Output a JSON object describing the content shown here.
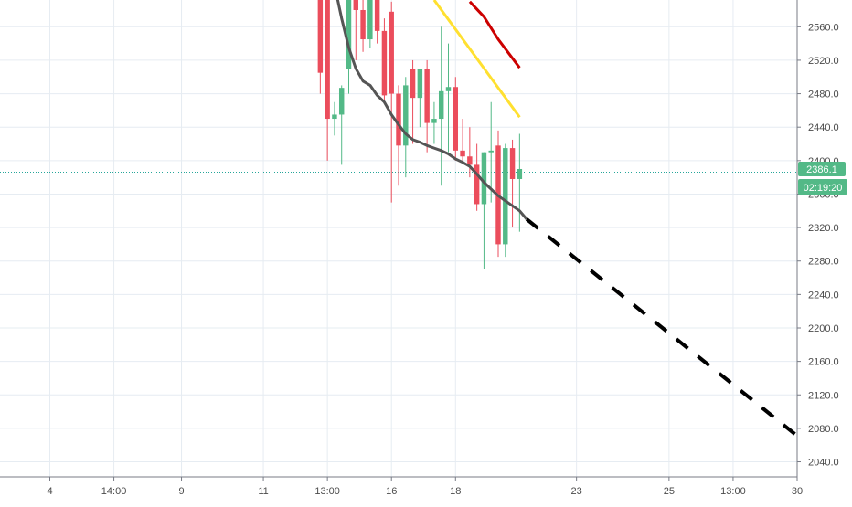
{
  "colors": {
    "grid": "#e6ecf2",
    "axis_line": "#787b86",
    "axis_text": "#4a4a4a",
    "up": "#53b987",
    "down": "#eb4d5c",
    "ma": "#555555",
    "red_line": "#cc0000",
    "yellow_line": "#ffe030",
    "dashed_line": "#000000",
    "price_tag": "#53b987",
    "price_tag_text": "#ffffff",
    "price_line": "#26a69a"
  },
  "price_label": "2386.1",
  "countdown_label": "02:19:20",
  "chart_data": {
    "type": "candlestick",
    "y_axis": {
      "range": [
        2022,
        2592
      ],
      "ticks": [
        "2560.0",
        "2520.0",
        "2480.0",
        "2440.0",
        "2400.0",
        "2360.0",
        "2320.0",
        "2280.0",
        "2240.0",
        "2200.0",
        "2160.0",
        "2120.0",
        "2080.0",
        "2040.0"
      ]
    },
    "x_axis": {
      "range": [
        0,
        112
      ],
      "ticks": [
        {
          "label": "4",
          "x": 7
        },
        {
          "label": "14:00",
          "x": 16
        },
        {
          "label": "9",
          "x": 25.5
        },
        {
          "label": "11",
          "x": 37
        },
        {
          "label": "13:00",
          "x": 46
        },
        {
          "label": "16",
          "x": 55
        },
        {
          "label": "18",
          "x": 64
        },
        {
          "label": "23",
          "x": 81
        },
        {
          "label": "25",
          "x": 94
        },
        {
          "label": "13:00",
          "x": 103
        },
        {
          "label": "30",
          "x": 112
        }
      ]
    },
    "candles": [
      {
        "x": 45,
        "o": 2640,
        "h": 2650,
        "l": 2480,
        "c": 2505
      },
      {
        "x": 46,
        "o": 2640,
        "h": 2660,
        "l": 2400,
        "c": 2450
      },
      {
        "x": 47,
        "o": 2450,
        "h": 2470,
        "l": 2430,
        "c": 2455
      },
      {
        "x": 48,
        "o": 2455,
        "h": 2490,
        "l": 2395,
        "c": 2487
      },
      {
        "x": 49,
        "o": 2510,
        "h": 2605,
        "l": 2480,
        "c": 2598
      },
      {
        "x": 50,
        "o": 2598,
        "h": 2640,
        "l": 2520,
        "c": 2580
      },
      {
        "x": 51,
        "o": 2580,
        "h": 2600,
        "l": 2530,
        "c": 2545
      },
      {
        "x": 52,
        "o": 2545,
        "h": 2620,
        "l": 2535,
        "c": 2605
      },
      {
        "x": 53,
        "o": 2605,
        "h": 2640,
        "l": 2540,
        "c": 2555
      },
      {
        "x": 54,
        "o": 2555,
        "h": 2570,
        "l": 2470,
        "c": 2478
      },
      {
        "x": 55,
        "o": 2578,
        "h": 2590,
        "l": 2350,
        "c": 2480
      },
      {
        "x": 56,
        "o": 2480,
        "h": 2490,
        "l": 2370,
        "c": 2418
      },
      {
        "x": 57,
        "o": 2418,
        "h": 2500,
        "l": 2380,
        "c": 2490
      },
      {
        "x": 58,
        "o": 2510,
        "h": 2520,
        "l": 2420,
        "c": 2475
      },
      {
        "x": 59,
        "o": 2475,
        "h": 2510,
        "l": 2440,
        "c": 2510
      },
      {
        "x": 60,
        "o": 2510,
        "h": 2520,
        "l": 2410,
        "c": 2445
      },
      {
        "x": 61,
        "o": 2445,
        "h": 2470,
        "l": 2420,
        "c": 2450
      },
      {
        "x": 62,
        "o": 2450,
        "h": 2560,
        "l": 2370,
        "c": 2483
      },
      {
        "x": 63,
        "o": 2483,
        "h": 2540,
        "l": 2410,
        "c": 2488
      },
      {
        "x": 64,
        "o": 2488,
        "h": 2500,
        "l": 2400,
        "c": 2412
      },
      {
        "x": 65,
        "o": 2412,
        "h": 2450,
        "l": 2400,
        "c": 2405
      },
      {
        "x": 66,
        "o": 2405,
        "h": 2440,
        "l": 2380,
        "c": 2395
      },
      {
        "x": 67,
        "o": 2395,
        "h": 2420,
        "l": 2340,
        "c": 2348
      },
      {
        "x": 68,
        "o": 2348,
        "h": 2410,
        "l": 2270,
        "c": 2410
      },
      {
        "x": 69,
        "o": 2410,
        "h": 2470,
        "l": 2350,
        "c": 2412
      },
      {
        "x": 70,
        "o": 2418,
        "h": 2436,
        "l": 2285,
        "c": 2300
      },
      {
        "x": 71,
        "o": 2300,
        "h": 2420,
        "l": 2285,
        "c": 2415
      },
      {
        "x": 72,
        "o": 2415,
        "h": 2425,
        "l": 2320,
        "c": 2378
      },
      {
        "x": 73,
        "o": 2378,
        "h": 2432,
        "l": 2315,
        "c": 2390
      }
    ],
    "lines": [
      {
        "name": "moving-average",
        "color_key": "ma",
        "dash": false,
        "width": 3,
        "points": [
          [
            47,
            2610
          ],
          [
            48,
            2570
          ],
          [
            49,
            2535
          ],
          [
            50,
            2510
          ],
          [
            51,
            2495
          ],
          [
            52,
            2490
          ],
          [
            53,
            2478
          ],
          [
            54,
            2470
          ],
          [
            55,
            2455
          ],
          [
            56,
            2443
          ],
          [
            57,
            2432
          ],
          [
            58,
            2425
          ],
          [
            59,
            2422
          ],
          [
            60,
            2418
          ],
          [
            61,
            2415
          ],
          [
            62,
            2412
          ],
          [
            63,
            2408
          ],
          [
            64,
            2402
          ],
          [
            65,
            2398
          ],
          [
            66,
            2393
          ],
          [
            67,
            2384
          ],
          [
            68,
            2374
          ],
          [
            69,
            2366
          ],
          [
            70,
            2358
          ],
          [
            71,
            2352
          ],
          [
            72,
            2346
          ],
          [
            73,
            2340
          ],
          [
            74,
            2330
          ]
        ]
      },
      {
        "name": "red-line",
        "color_key": "red_line",
        "dash": false,
        "width": 3,
        "points": [
          [
            66,
            2590
          ],
          [
            68,
            2572
          ],
          [
            70,
            2545
          ],
          [
            73,
            2511
          ]
        ]
      },
      {
        "name": "yellow-line",
        "color_key": "yellow_line",
        "dash": false,
        "width": 3,
        "points": [
          [
            61,
            2592
          ],
          [
            73,
            2452
          ]
        ]
      },
      {
        "name": "projection-line",
        "color_key": "dashed_line",
        "dash": true,
        "width": 4,
        "points": [
          [
            74,
            2330
          ],
          [
            112,
            2071
          ]
        ]
      }
    ],
    "current_price": 2386.1,
    "grid": true
  }
}
